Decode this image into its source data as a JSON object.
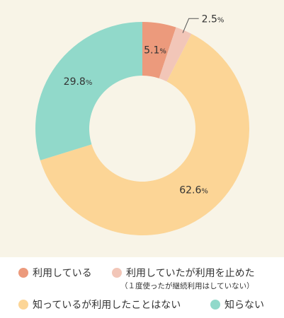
{
  "chart_data": {
    "type": "pie",
    "donut": true,
    "unit": "%",
    "colors": {
      "background": "#f8f4e7",
      "text": "#333333",
      "leader": "#555555"
    },
    "slices": [
      {
        "label": "利用している",
        "value": 5.1,
        "value_text": "5.1",
        "color": "#ec9a7c"
      },
      {
        "label": "利用していたが利用を止めた",
        "note": "（１度使ったが継続利用はしていない）",
        "value": 2.5,
        "value_text": "2.5",
        "color": "#f2c6b8"
      },
      {
        "label": "知っているが利用したことはない",
        "value": 62.6,
        "value_text": "62.6",
        "color": "#fcd596"
      },
      {
        "label": "知らない",
        "value": 29.8,
        "value_text": "29.8",
        "color": "#91d9ca"
      }
    ]
  }
}
